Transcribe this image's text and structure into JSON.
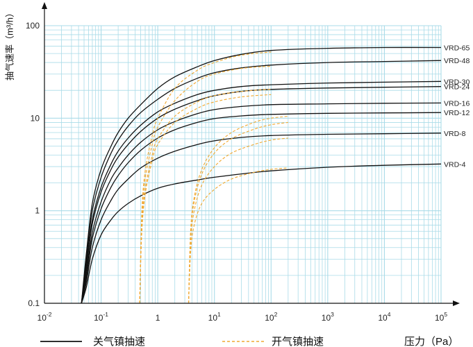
{
  "chart_data": {
    "type": "line",
    "ylabel": "抽气速率（m³/h）",
    "xlabel": "压力（Pa）",
    "x_scale": "log",
    "y_scale": "log",
    "xlim": [
      0.01,
      100000
    ],
    "ylim": [
      0.1,
      100
    ],
    "grid": true,
    "x_ticks": [
      {
        "base": "10",
        "exp": "-2"
      },
      {
        "base": "10",
        "exp": "-1"
      },
      {
        "base": "1",
        "exp": ""
      },
      {
        "base": "10",
        "exp": "1"
      },
      {
        "base": "10",
        "exp": "2"
      },
      {
        "base": "10",
        "exp": "3"
      },
      {
        "base": "10",
        "exp": "4"
      },
      {
        "base": "10",
        "exp": "5"
      }
    ],
    "y_ticks": [
      "0.1",
      "1",
      "10",
      "100"
    ],
    "legend": {
      "placement": "bottom",
      "items": [
        {
          "label": "关气镇抽速",
          "style": "solid",
          "color": "#111111"
        },
        {
          "label": "开气镇抽速",
          "style": "dashed",
          "color": "#f0a830"
        }
      ]
    },
    "colors": {
      "closed": "#111111",
      "open": "#f0a830",
      "grid": "#a9dbe8"
    },
    "series": [
      {
        "name": "VRD-65",
        "ballast": "closed",
        "x": [
          0.045,
          0.055,
          0.07,
          0.1,
          0.15,
          0.2,
          0.3,
          0.5,
          1,
          2,
          5,
          10,
          30,
          100,
          1000,
          10000,
          100000
        ],
        "y": [
          0.1,
          0.35,
          1.2,
          2.8,
          5,
          7,
          10,
          14,
          21,
          28,
          36,
          42,
          49,
          54,
          57,
          58,
          58
        ]
      },
      {
        "name": "VRD-48",
        "ballast": "closed",
        "x": [
          0.045,
          0.055,
          0.07,
          0.1,
          0.15,
          0.2,
          0.3,
          0.5,
          1,
          2,
          5,
          10,
          30,
          100,
          1000,
          10000,
          100000
        ],
        "y": [
          0.1,
          0.3,
          1,
          2.3,
          4.2,
          5.8,
          8.2,
          11.5,
          16,
          21,
          27,
          31,
          35,
          37.5,
          40,
          41,
          42
        ]
      },
      {
        "name": "VRD-30",
        "ballast": "closed",
        "x": [
          0.045,
          0.055,
          0.07,
          0.1,
          0.15,
          0.2,
          0.3,
          0.5,
          1,
          2,
          5,
          10,
          30,
          100,
          1000,
          10000,
          100000
        ],
        "y": [
          0.1,
          0.26,
          0.8,
          1.8,
          3.2,
          4.4,
          6.1,
          8.4,
          11.7,
          14.5,
          18,
          20,
          22,
          23,
          24,
          24.5,
          25
        ]
      },
      {
        "name": "VRD-24",
        "ballast": "closed",
        "x": [
          0.045,
          0.055,
          0.07,
          0.1,
          0.15,
          0.2,
          0.3,
          0.5,
          1,
          2,
          5,
          10,
          30,
          100,
          1000,
          10000,
          100000
        ],
        "y": [
          0.1,
          0.24,
          0.72,
          1.6,
          2.8,
          3.8,
          5.2,
          7.2,
          10,
          12.5,
          15.5,
          17.5,
          19.5,
          20.5,
          21.2,
          21.6,
          22
        ]
      },
      {
        "name": "VRD-16",
        "ballast": "closed",
        "x": [
          0.045,
          0.055,
          0.07,
          0.1,
          0.15,
          0.2,
          0.3,
          0.5,
          1,
          2,
          5,
          10,
          30,
          100,
          1000,
          10000,
          100000
        ],
        "y": [
          0.1,
          0.21,
          0.58,
          1.25,
          2.2,
          2.9,
          4,
          5.5,
          7.5,
          9.2,
          11.2,
          12.4,
          13.4,
          14,
          14.3,
          14.5,
          14.6
        ]
      },
      {
        "name": "VRD-12",
        "ballast": "closed",
        "x": [
          0.045,
          0.055,
          0.07,
          0.1,
          0.15,
          0.2,
          0.3,
          0.5,
          1,
          2,
          5,
          10,
          30,
          100,
          1000,
          10000,
          100000
        ],
        "y": [
          0.1,
          0.19,
          0.5,
          1.05,
          1.8,
          2.4,
          3.3,
          4.5,
          6.1,
          7.5,
          9,
          9.9,
          10.6,
          11,
          11.3,
          11.4,
          11.5
        ]
      },
      {
        "name": "VRD-8",
        "ballast": "closed",
        "x": [
          0.045,
          0.055,
          0.07,
          0.1,
          0.15,
          0.2,
          0.3,
          0.5,
          1,
          2,
          5,
          10,
          30,
          100,
          1000,
          10000,
          100000
        ],
        "y": [
          0.1,
          0.17,
          0.4,
          0.8,
          1.3,
          1.7,
          2.2,
          2.9,
          3.7,
          4.4,
          5.2,
          5.7,
          6.2,
          6.5,
          6.7,
          6.8,
          6.9
        ]
      },
      {
        "name": "VRD-4",
        "ballast": "closed",
        "x": [
          0.045,
          0.055,
          0.07,
          0.1,
          0.15,
          0.2,
          0.3,
          0.5,
          1,
          2,
          5,
          10,
          30,
          100,
          1000,
          10000,
          100000
        ],
        "y": [
          0.1,
          0.15,
          0.3,
          0.55,
          0.8,
          0.98,
          1.2,
          1.45,
          1.75,
          1.95,
          2.15,
          2.3,
          2.5,
          2.7,
          2.95,
          3.1,
          3.2
        ]
      },
      {
        "name": "",
        "ballast": "open",
        "x": [
          0.48,
          0.52,
          0.6,
          0.8,
          1,
          2,
          5,
          10,
          30,
          100
        ],
        "y": [
          0.1,
          0.9,
          2.7,
          6.5,
          10,
          21,
          33,
          40,
          48,
          52
        ]
      },
      {
        "name": "",
        "ballast": "open",
        "x": [
          0.48,
          0.52,
          0.6,
          0.8,
          1,
          2,
          5,
          10,
          30,
          100
        ],
        "y": [
          0.1,
          0.75,
          2.2,
          5.2,
          8,
          15.5,
          25,
          30,
          34.5,
          36.5
        ]
      },
      {
        "name": "",
        "ballast": "open",
        "x": [
          0.48,
          0.52,
          0.6,
          0.8,
          1,
          2,
          5,
          10,
          30,
          100
        ],
        "y": [
          0.1,
          0.6,
          1.7,
          4,
          6,
          10.5,
          15,
          17.5,
          19.5,
          20.5
        ]
      },
      {
        "name": "",
        "ballast": "open",
        "x": [
          0.48,
          0.52,
          0.6,
          0.8,
          1,
          2,
          5,
          10,
          30,
          100
        ],
        "y": [
          0.1,
          0.55,
          1.5,
          3.5,
          5.2,
          9,
          12.8,
          15,
          17,
          18
        ]
      },
      {
        "name": "",
        "ballast": "open",
        "x": [
          3.5,
          3.8,
          4.4,
          6,
          10,
          20,
          50,
          100,
          200
        ],
        "y": [
          0.1,
          0.6,
          1.4,
          2.8,
          4.8,
          7,
          9,
          10,
          10.5
        ]
      },
      {
        "name": "",
        "ballast": "open",
        "x": [
          3.5,
          3.8,
          4.4,
          6,
          10,
          20,
          50,
          100,
          200
        ],
        "y": [
          0.1,
          0.55,
          1.25,
          2.5,
          4.2,
          6,
          7.6,
          8.5,
          9
        ]
      },
      {
        "name": "",
        "ballast": "open",
        "x": [
          3.5,
          3.8,
          4.4,
          6,
          10,
          20,
          50,
          100,
          200
        ],
        "y": [
          0.1,
          0.45,
          1,
          1.9,
          3,
          4.2,
          5.2,
          5.8,
          6.1
        ]
      },
      {
        "name": "",
        "ballast": "open",
        "x": [
          3.5,
          3.8,
          4.4,
          6,
          10,
          20,
          50,
          100,
          200
        ],
        "y": [
          0.1,
          0.35,
          0.7,
          1.2,
          1.7,
          2.2,
          2.6,
          2.8,
          2.9
        ]
      }
    ]
  }
}
